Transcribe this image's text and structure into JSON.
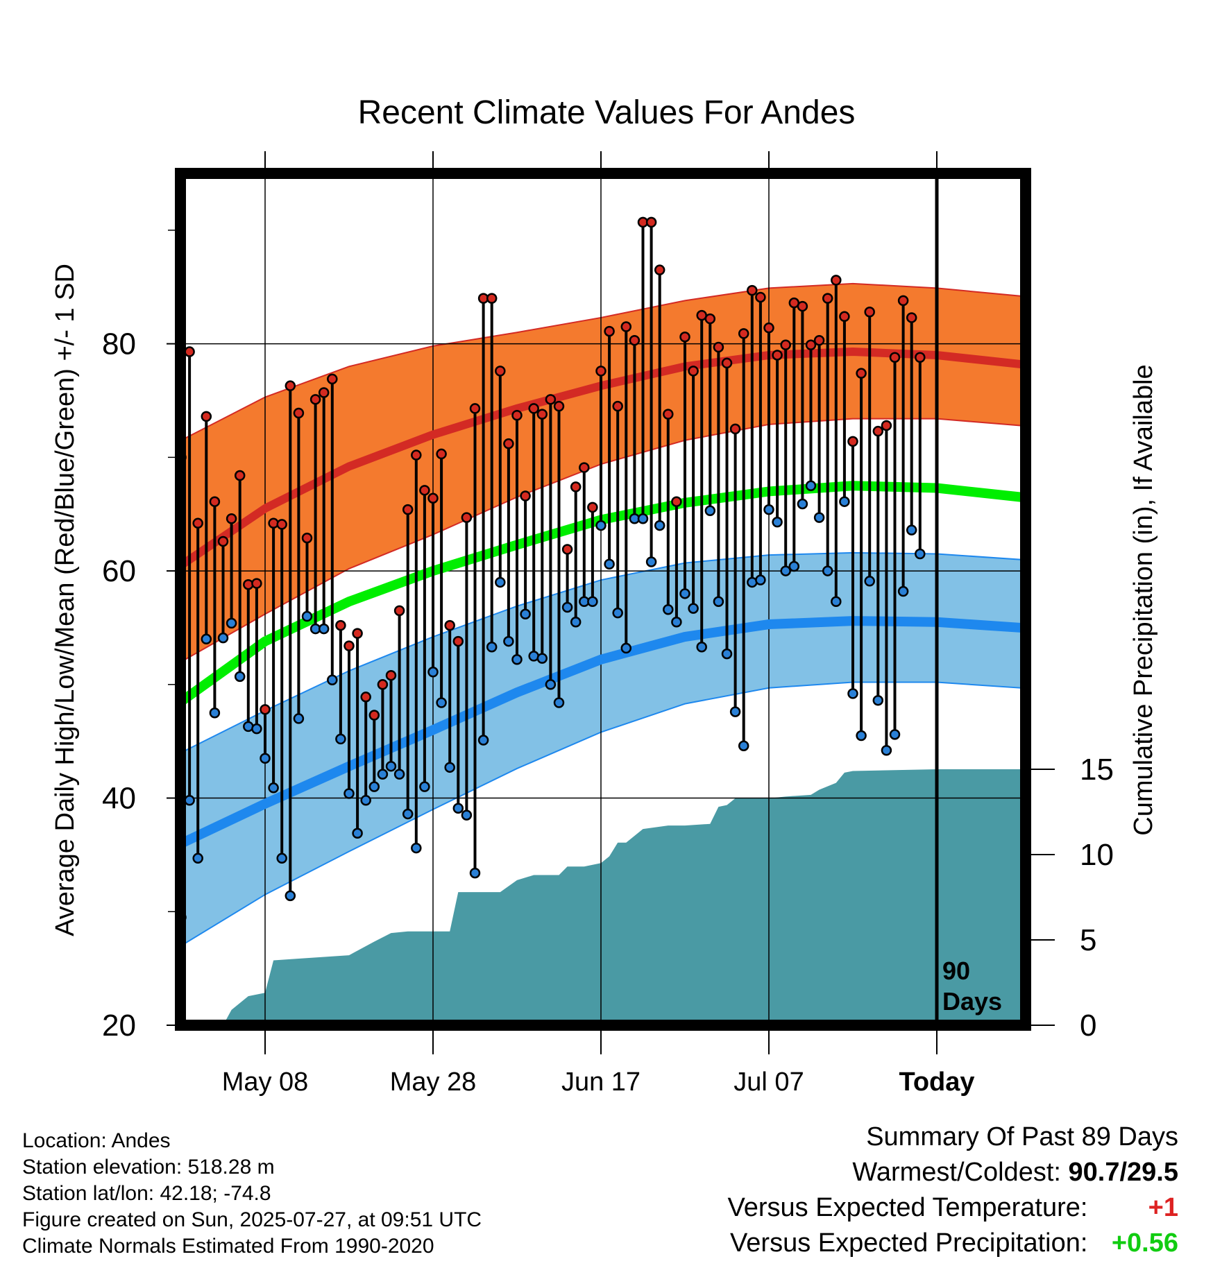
{
  "chart_data": {
    "type": "line",
    "title": "Recent Climate Values For Andes",
    "xlabel": "Day",
    "ylabel_left": "Average Daily High/Low/Mean (Red/Blue/Green) +/- 1 SD",
    "ylabel_right": "Cumulative Precipitation (in), If Available",
    "ylim_left": [
      20,
      95
    ],
    "ylim_right": [
      0,
      30
    ],
    "left_ticks": [
      "20",
      "40",
      "60",
      "80"
    ],
    "right_ticks": [
      "0",
      "5",
      "10",
      "15"
    ],
    "x_tick_labels": [
      "May 08",
      "May 28",
      "Jun 17",
      "Jul 07",
      "Today"
    ],
    "x_tick_day_index": [
      10,
      30,
      50,
      70,
      90
    ],
    "marker_text": "90\nDays",
    "today_index": 90,
    "colors": {
      "high_band": "#f47a2e",
      "high_mean": "#d32a24",
      "low_band": "#82c1e6",
      "low_mean": "#1e88ee",
      "mean_line": "#00ee00",
      "precip": "#4a9aa4",
      "high_dot": "#d42a20",
      "low_dot": "#2a80d6"
    },
    "normals": {
      "day_index": [
        0,
        10,
        20,
        30,
        40,
        50,
        60,
        70,
        80,
        90,
        100
      ],
      "high_mean": [
        60.5,
        65.5,
        69.2,
        72.0,
        74.3,
        76.3,
        78.0,
        79.0,
        79.3,
        79.0,
        78.2
      ],
      "high_upper": [
        71.5,
        75.3,
        78.0,
        79.8,
        81.0,
        82.3,
        83.8,
        84.9,
        85.3,
        84.9,
        84.2
      ],
      "high_lower": [
        52.0,
        56.2,
        60.2,
        63.2,
        66.5,
        69.4,
        71.5,
        72.9,
        73.4,
        73.4,
        72.8
      ],
      "mean_line": [
        48.5,
        53.8,
        57.3,
        60.0,
        62.3,
        64.5,
        66.0,
        67.0,
        67.5,
        67.3,
        66.5
      ],
      "low_mean": [
        36.0,
        39.5,
        42.8,
        46.0,
        49.3,
        52.2,
        54.2,
        55.3,
        55.6,
        55.5,
        55.0
      ],
      "low_upper": [
        44.0,
        47.7,
        51.2,
        54.2,
        56.9,
        59.2,
        60.7,
        61.4,
        61.6,
        61.5,
        61.0
      ],
      "low_lower": [
        27.0,
        31.5,
        35.3,
        39.0,
        42.6,
        45.8,
        48.3,
        49.7,
        50.2,
        50.2,
        49.7
      ]
    },
    "daily_high": [
      70.0,
      79.3,
      64.2,
      73.6,
      66.1,
      62.6,
      64.6,
      68.4,
      58.8,
      58.9,
      47.8,
      64.2,
      64.1,
      76.3,
      73.9,
      62.9,
      75.1,
      75.7,
      76.9,
      55.2,
      53.4,
      54.5,
      48.9,
      47.3,
      50.0,
      50.8,
      56.5,
      65.4,
      70.2,
      67.1,
      66.4,
      70.3,
      55.2,
      53.8,
      64.7,
      74.3,
      84.0,
      84.0,
      77.6,
      71.2,
      73.7,
      66.6,
      74.3,
      73.8,
      75.1,
      74.5,
      61.9,
      67.4,
      69.1,
      65.6,
      77.6,
      81.1,
      74.5,
      81.5,
      80.3,
      90.7,
      90.7,
      86.5,
      73.8,
      66.1,
      80.6,
      77.6,
      82.5,
      82.2,
      79.7,
      78.3,
      72.5,
      80.9,
      84.7,
      84.1,
      81.4,
      79.0,
      79.9,
      83.6,
      83.3,
      79.9,
      80.3,
      84.0,
      85.6,
      82.4,
      71.4,
      77.4,
      82.8,
      72.3,
      72.8,
      78.8,
      83.8,
      82.3,
      78.8
    ],
    "daily_low": [
      29.5,
      39.8,
      34.7,
      54.0,
      47.5,
      54.1,
      55.4,
      50.7,
      46.3,
      46.1,
      43.5,
      40.9,
      34.7,
      31.4,
      47.0,
      56.0,
      54.9,
      54.9,
      50.4,
      45.2,
      40.4,
      36.9,
      39.8,
      41.0,
      42.1,
      42.8,
      42.1,
      38.6,
      35.6,
      41.0,
      51.1,
      48.4,
      42.7,
      39.1,
      38.5,
      33.4,
      45.1,
      53.3,
      59.0,
      53.8,
      52.2,
      56.2,
      52.5,
      52.3,
      50.0,
      48.4,
      56.8,
      55.5,
      57.3,
      57.3,
      64.0,
      60.6,
      56.3,
      53.2,
      64.6,
      64.6,
      60.8,
      64.0,
      56.6,
      55.5,
      58.0,
      56.7,
      53.3,
      65.3,
      57.3,
      52.7,
      47.6,
      44.6,
      59.0,
      59.2,
      65.4,
      64.3,
      60.0,
      60.4,
      65.9,
      67.5,
      64.7,
      60.0,
      57.3,
      66.1,
      49.2,
      45.5,
      59.1,
      48.6,
      44.2,
      45.6,
      58.2,
      63.6,
      61.5
    ],
    "precip_day_index": [
      0,
      5,
      6,
      8,
      10,
      11,
      14,
      20,
      23,
      25,
      27,
      30,
      32,
      33,
      35,
      38,
      40,
      42,
      45,
      46,
      48,
      50,
      51,
      52,
      53,
      55,
      58,
      60,
      63,
      64,
      65,
      66,
      68,
      70,
      72,
      75,
      76,
      78,
      79,
      80,
      90,
      100
    ],
    "precip_cumulative": [
      0,
      0,
      0.9,
      1.7,
      1.9,
      3.8,
      3.9,
      4.1,
      4.9,
      5.4,
      5.5,
      5.5,
      5.5,
      7.8,
      7.8,
      7.8,
      8.5,
      8.8,
      8.8,
      9.3,
      9.3,
      9.5,
      9.9,
      10.7,
      10.7,
      11.5,
      11.7,
      11.7,
      11.8,
      12.8,
      12.9,
      13.3,
      13.3,
      13.3,
      13.4,
      13.5,
      13.8,
      14.2,
      14.8,
      14.9,
      15.0,
      15.0
    ]
  },
  "info": {
    "location": "Location: Andes",
    "elevation": "Station elevation: 518.28 m",
    "latlon": "Station lat/lon: 42.18; -74.8",
    "created": "Figure created on Sun, 2025-07-27, at 09:51 UTC",
    "normals": "Climate Normals Estimated From 1990-2020"
  },
  "summary": {
    "title": "Summary Of Past 89 Days",
    "warm_cold_label": "Warmest/Coldest:",
    "warm_cold_value": "90.7/29.5",
    "temp_label": "Versus Expected Temperature:",
    "temp_value": "+1",
    "temp_color": "#dd2222",
    "precip_label": "Versus Expected Precipitation:",
    "precip_value": "+0.56",
    "precip_color": "#11cc11"
  }
}
